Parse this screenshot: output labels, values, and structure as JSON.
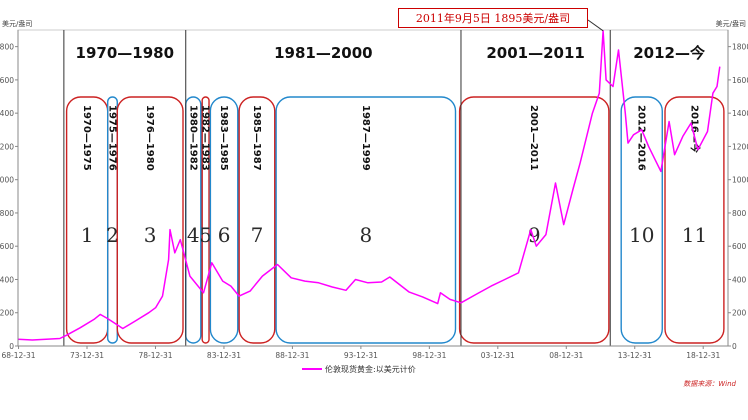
{
  "chart_data": {
    "type": "line",
    "unit_left": "美元/盎司",
    "unit_right": "美元/盎司",
    "ylim": [
      0,
      1900
    ],
    "y_ticks": [
      0,
      200,
      400,
      600,
      800,
      1000,
      1200,
      1400,
      1600,
      1800
    ],
    "x_ticks": [
      "68-12-31",
      "73-12-31",
      "78-12-31",
      "83-12-31",
      "88-12-31",
      "93-12-31",
      "98-12-31",
      "03-12-31",
      "08-12-31",
      "13-12-31",
      "18-12-31"
    ],
    "grid": false,
    "legend_position": "bottom",
    "series": [
      {
        "name": "伦敦现货黄金:以美元计价",
        "color": "#ff00ff",
        "points": [
          [
            1968.95,
            41
          ],
          [
            1970.0,
            36
          ],
          [
            1971.0,
            40
          ],
          [
            1972.0,
            45
          ],
          [
            1972.5,
            65
          ],
          [
            1973.5,
            110
          ],
          [
            1974.5,
            160
          ],
          [
            1974.95,
            190
          ],
          [
            1975.5,
            165
          ],
          [
            1976.6,
            105
          ],
          [
            1977.5,
            150
          ],
          [
            1978.5,
            200
          ],
          [
            1979.0,
            230
          ],
          [
            1979.5,
            300
          ],
          [
            1979.95,
            520
          ],
          [
            1980.05,
            700
          ],
          [
            1980.4,
            560
          ],
          [
            1980.8,
            640
          ],
          [
            1981.5,
            420
          ],
          [
            1982.5,
            320
          ],
          [
            1983.1,
            500
          ],
          [
            1983.9,
            390
          ],
          [
            1984.5,
            360
          ],
          [
            1985.1,
            300
          ],
          [
            1985.9,
            330
          ],
          [
            1986.8,
            420
          ],
          [
            1987.9,
            490
          ],
          [
            1988.9,
            410
          ],
          [
            1989.9,
            390
          ],
          [
            1990.9,
            380
          ],
          [
            1991.9,
            355
          ],
          [
            1992.9,
            335
          ],
          [
            1993.6,
            400
          ],
          [
            1994.5,
            380
          ],
          [
            1995.5,
            385
          ],
          [
            1996.1,
            415
          ],
          [
            1997.5,
            325
          ],
          [
            1998.5,
            295
          ],
          [
            1999.6,
            255
          ],
          [
            1999.8,
            320
          ],
          [
            2000.5,
            280
          ],
          [
            2001.3,
            260
          ],
          [
            2002.5,
            315
          ],
          [
            2003.5,
            360
          ],
          [
            2004.5,
            400
          ],
          [
            2005.5,
            440
          ],
          [
            2006.4,
            700
          ],
          [
            2006.8,
            600
          ],
          [
            2007.5,
            670
          ],
          [
            2008.2,
            980
          ],
          [
            2008.8,
            730
          ],
          [
            2009.5,
            950
          ],
          [
            2010.0,
            1100
          ],
          [
            2010.9,
            1400
          ],
          [
            2011.4,
            1520
          ],
          [
            2011.68,
            1895
          ],
          [
            2011.9,
            1600
          ],
          [
            2012.4,
            1560
          ],
          [
            2012.8,
            1780
          ],
          [
            2013.3,
            1400
          ],
          [
            2013.5,
            1220
          ],
          [
            2013.9,
            1270
          ],
          [
            2014.5,
            1300
          ],
          [
            2015.0,
            1200
          ],
          [
            2015.9,
            1050
          ],
          [
            2016.5,
            1350
          ],
          [
            2016.9,
            1150
          ],
          [
            2017.5,
            1260
          ],
          [
            2018.1,
            1340
          ],
          [
            2018.6,
            1180
          ],
          [
            2019.3,
            1290
          ],
          [
            2019.7,
            1520
          ],
          [
            2020.0,
            1560
          ],
          [
            2020.2,
            1680
          ]
        ]
      }
    ],
    "eras": [
      {
        "label": "1970—1980",
        "x_start": 1972.3,
        "x_end": 1981.2
      },
      {
        "label": "1981—2000",
        "x_start": 1981.2,
        "x_end": 2001.3
      },
      {
        "label": "2001—2011",
        "x_start": 2001.3,
        "x_end": 2012.2
      },
      {
        "label": "2012—今",
        "x_start": 2012.2,
        "x_end": 2020.8
      }
    ],
    "periods": [
      {
        "label": "1970—1975",
        "number": "1",
        "color": "#cc2222",
        "x_start": 1972.5,
        "x_end": 1975.5
      },
      {
        "label": "1975—1976",
        "number": "2",
        "color": "#2288cc",
        "x_start": 1975.5,
        "x_end": 1976.2
      },
      {
        "label": "1976—1980",
        "number": "3",
        "color": "#cc2222",
        "x_start": 1976.2,
        "x_end": 1981.0
      },
      {
        "label": "1980—1982",
        "number": "4",
        "color": "#2288cc",
        "x_start": 1981.2,
        "x_end": 1982.3
      },
      {
        "label": "1982—1983",
        "number": "5",
        "color": "#cc2222",
        "x_start": 1982.4,
        "x_end": 1982.9
      },
      {
        "label": "1983—1985",
        "number": "6",
        "color": "#2288cc",
        "x_start": 1983.0,
        "x_end": 1985.0
      },
      {
        "label": "1985—1987",
        "number": "7",
        "color": "#cc2222",
        "x_start": 1985.1,
        "x_end": 1987.7
      },
      {
        "label": "1987—1999",
        "number": "8",
        "color": "#2288cc",
        "x_start": 1987.8,
        "x_end": 2000.9
      },
      {
        "label": "2001—2011",
        "number": "9",
        "color": "#cc2222",
        "x_start": 2001.2,
        "x_end": 2012.1
      },
      {
        "label": "2012—2016",
        "number": "10",
        "color": "#2288cc",
        "x_start": 2013.0,
        "x_end": 2016.0
      },
      {
        "label": "2016—今",
        "number": "11",
        "color": "#cc2222",
        "x_start": 2016.2,
        "x_end": 2020.5
      }
    ],
    "annotation": {
      "text": "2011年9月5日 1895美元/盎司",
      "x": 2011.68,
      "y": 1895
    }
  },
  "source_note": "数据来源：Wind"
}
